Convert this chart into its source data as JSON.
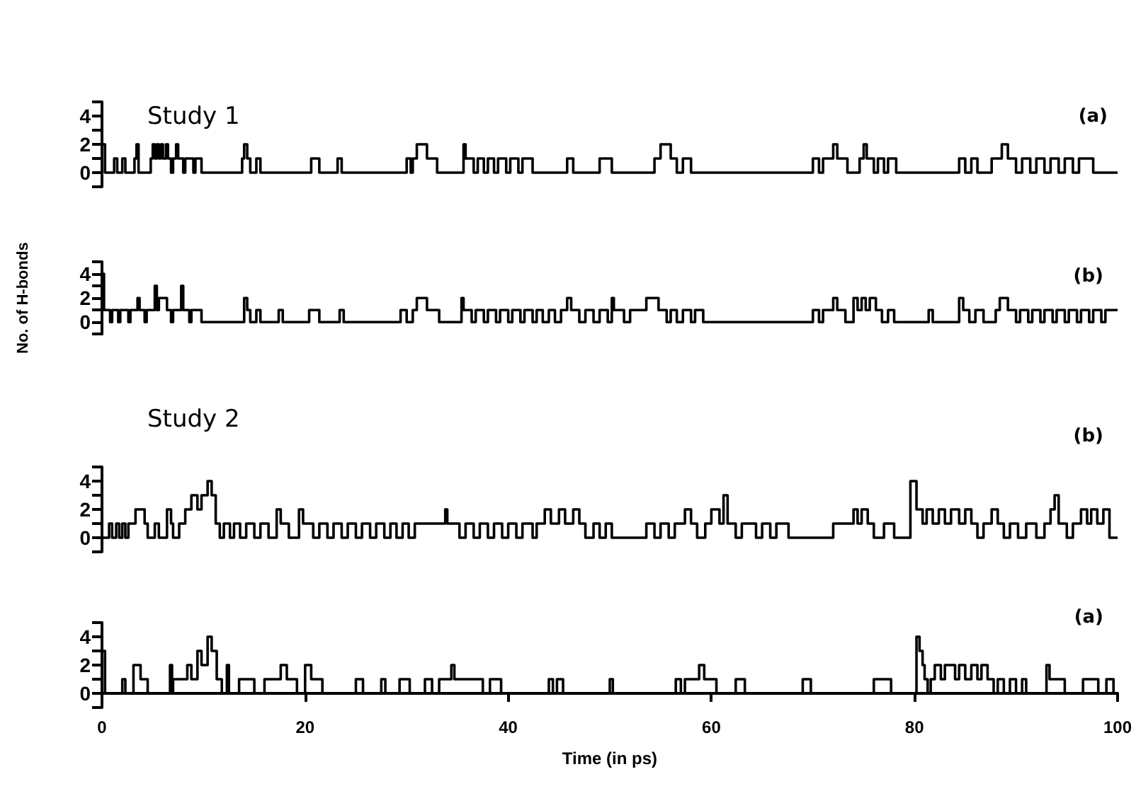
{
  "chart_data": [
    {
      "type": "step",
      "annotations": [
        "Study 1",
        "(a)"
      ],
      "xlim": [
        0,
        100
      ],
      "ylim": [
        -1,
        5
      ],
      "yticks": [
        {
          "value": -1,
          "label": null
        },
        0,
        {
          "value": 1,
          "label": null
        },
        2,
        {
          "value": 3,
          "label": null
        },
        4,
        {
          "value": 5,
          "label": null
        }
      ],
      "tick_labels": "y",
      "series": [
        {
          "color": "#000000",
          "x": [
            0,
            0.3,
            1.2,
            1.5,
            2.0,
            2.3,
            3.2,
            3.4,
            3.6,
            4.8,
            5.0,
            5.2,
            5.4,
            5.6,
            5.8,
            6.0,
            6.3,
            6.5,
            6.8,
            7.0,
            7.3,
            7.5,
            8.0,
            8.2,
            9.0,
            9.2,
            9.8,
            13.8,
            14.0,
            14.3,
            14.6,
            15.2,
            15.6,
            20.6,
            21.4,
            23.2,
            23.6,
            30.0,
            30.4,
            30.6,
            31.0,
            32.0,
            33.0,
            35.6,
            35.8,
            36.6,
            37.0,
            37.6,
            38.0,
            38.6,
            39.0,
            39.8,
            40.2,
            41.0,
            41.4,
            42.4,
            45.8,
            46.4,
            49.0,
            50.2,
            54.4,
            55.0,
            56.0,
            56.6,
            57.2,
            58.0,
            70.0,
            70.6,
            71.0,
            72.0,
            72.4,
            73.4,
            74.6,
            75.0,
            75.3,
            76.0,
            76.4,
            77.0,
            77.4,
            78.2,
            84.4,
            85.0,
            85.6,
            86.2,
            87.6,
            88.6,
            89.2,
            90.0,
            90.6,
            91.4,
            92.0,
            92.8,
            93.4,
            94.2,
            94.8,
            95.6,
            96.2,
            97.6,
            100
          ],
          "values": [
            2,
            0,
            1,
            0,
            1,
            0,
            1,
            2,
            0,
            1,
            2,
            1,
            2,
            1,
            2,
            1,
            2,
            1,
            0,
            1,
            2,
            1,
            0,
            1,
            0,
            1,
            0,
            1,
            2,
            1,
            0,
            1,
            0,
            1,
            0,
            1,
            0,
            1,
            0,
            1,
            2,
            1,
            0,
            2,
            1,
            0,
            1,
            0,
            1,
            0,
            1,
            0,
            1,
            0,
            1,
            0,
            1,
            0,
            1,
            0,
            1,
            2,
            1,
            0,
            1,
            0,
            1,
            0,
            1,
            2,
            1,
            0,
            1,
            2,
            1,
            0,
            1,
            0,
            1,
            0,
            1,
            0,
            1,
            0,
            1,
            2,
            1,
            0,
            1,
            0,
            1,
            0,
            1,
            0,
            1,
            0,
            1,
            0,
            0
          ]
        }
      ]
    },
    {
      "type": "step",
      "annotations": [
        "(b)"
      ],
      "ylabel": "No. of H-bonds",
      "xlim": [
        0,
        100
      ],
      "ylim": [
        -1,
        5
      ],
      "yticks": [
        {
          "value": -1,
          "label": null
        },
        0,
        {
          "value": 1,
          "label": null
        },
        2,
        {
          "value": 3,
          "label": null
        },
        4,
        {
          "value": 5,
          "label": null
        }
      ],
      "tick_labels": "y",
      "series": [
        {
          "color": "#000000",
          "x": [
            0,
            0.2,
            0.8,
            1.0,
            1.6,
            1.8,
            2.6,
            2.8,
            3.5,
            3.7,
            4.2,
            4.4,
            5.2,
            5.4,
            5.6,
            6.4,
            6.8,
            7.0,
            7.8,
            8.0,
            8.6,
            8.8,
            9.8,
            14.0,
            14.3,
            14.6,
            15.2,
            15.6,
            17.4,
            17.8,
            20.4,
            21.4,
            23.4,
            23.8,
            29.4,
            30.0,
            30.6,
            31.0,
            32.0,
            33.2,
            35.4,
            35.6,
            36.4,
            36.8,
            37.6,
            38.0,
            38.8,
            39.2,
            40.0,
            40.4,
            41.2,
            41.6,
            42.4,
            42.8,
            43.4,
            44.0,
            44.6,
            45.2,
            45.8,
            46.2,
            47.0,
            47.6,
            48.4,
            49.0,
            49.8,
            50.2,
            50.4,
            51.4,
            52.0,
            53.6,
            54.8,
            55.6,
            56.0,
            56.6,
            57.2,
            58.0,
            58.4,
            59.2,
            70.0,
            70.6,
            71.0,
            72.0,
            72.4,
            73.2,
            74.0,
            74.4,
            74.8,
            75.2,
            75.6,
            76.2,
            76.8,
            77.4,
            78.0,
            81.4,
            81.8,
            84.4,
            84.8,
            85.4,
            86.0,
            86.8,
            88.0,
            88.4,
            89.2,
            90.0,
            90.4,
            91.2,
            91.6,
            92.4,
            92.8,
            93.6,
            94.0,
            94.8,
            95.2,
            96.0,
            96.4,
            97.2,
            97.6,
            98.4,
            98.8,
            100
          ],
          "values": [
            4,
            1,
            0,
            1,
            0,
            1,
            0,
            1,
            2,
            1,
            0,
            1,
            3,
            1,
            2,
            1,
            0,
            1,
            3,
            1,
            0,
            1,
            0,
            2,
            1,
            0,
            1,
            0,
            1,
            0,
            1,
            0,
            1,
            0,
            1,
            0,
            1,
            2,
            1,
            0,
            2,
            1,
            0,
            1,
            0,
            1,
            0,
            1,
            0,
            1,
            0,
            1,
            0,
            1,
            0,
            1,
            0,
            1,
            2,
            1,
            0,
            1,
            0,
            1,
            0,
            2,
            1,
            0,
            1,
            2,
            1,
            0,
            1,
            0,
            1,
            0,
            1,
            0,
            1,
            0,
            1,
            2,
            1,
            0,
            2,
            1,
            2,
            1,
            2,
            1,
            0,
            1,
            0,
            1,
            0,
            2,
            1,
            0,
            1,
            0,
            1,
            2,
            1,
            0,
            1,
            0,
            1,
            0,
            1,
            0,
            1,
            0,
            1,
            0,
            1,
            0,
            1,
            0,
            1,
            1
          ]
        }
      ]
    },
    {
      "type": "step",
      "annotations": [
        "Study 2",
        "(b)"
      ],
      "xlim": [
        0,
        100
      ],
      "ylim": [
        -1,
        5
      ],
      "yticks": [
        {
          "value": -1,
          "label": null
        },
        0,
        {
          "value": 1,
          "label": null
        },
        2,
        {
          "value": 3,
          "label": null
        },
        4,
        {
          "value": 5,
          "label": null
        }
      ],
      "tick_labels": "y",
      "series": [
        {
          "color": "#000000",
          "x": [
            0,
            0.7,
            1.0,
            1.4,
            1.7,
            2.0,
            2.3,
            2.6,
            3.3,
            4.2,
            4.5,
            5.2,
            5.6,
            6.4,
            6.8,
            7.0,
            7.6,
            8.2,
            8.8,
            9.4,
            9.8,
            10.4,
            10.8,
            11.2,
            11.6,
            12.0,
            12.6,
            13.0,
            13.6,
            14.2,
            15.0,
            15.6,
            16.4,
            17.2,
            17.6,
            18.4,
            19.4,
            19.8,
            20.8,
            21.4,
            22.2,
            22.8,
            23.6,
            24.2,
            25.0,
            25.6,
            26.4,
            27.0,
            27.8,
            28.4,
            29.0,
            29.6,
            30.2,
            30.8,
            33.8,
            34.0,
            35.2,
            35.8,
            36.6,
            37.2,
            38.0,
            38.6,
            39.4,
            40.0,
            40.8,
            41.4,
            42.4,
            42.8,
            43.6,
            44.2,
            45.0,
            45.6,
            46.4,
            47.0,
            47.6,
            48.4,
            49.0,
            49.6,
            50.2,
            53.6,
            54.4,
            55.0,
            55.8,
            56.4,
            57.4,
            58.0,
            58.6,
            59.4,
            60.0,
            60.8,
            61.2,
            61.6,
            62.4,
            63.0,
            64.4,
            65.0,
            65.8,
            66.4,
            67.6,
            72.0,
            74.0,
            74.4,
            74.8,
            75.4,
            76.0,
            77.0,
            78.0,
            79.6,
            80.2,
            80.8,
            81.2,
            81.8,
            82.4,
            83.0,
            83.6,
            84.4,
            85.0,
            85.6,
            86.2,
            86.8,
            87.6,
            88.2,
            88.8,
            89.4,
            90.2,
            91.0,
            92.0,
            92.8,
            93.4,
            93.8,
            94.2,
            95.0,
            95.6,
            96.4,
            97.0,
            97.4,
            98.0,
            98.6,
            99.2,
            100
          ],
          "values": [
            0,
            1,
            0,
            1,
            0,
            1,
            0,
            1,
            2,
            1,
            0,
            1,
            0,
            2,
            1,
            0,
            1,
            2,
            3,
            2,
            3,
            4,
            3,
            1,
            0,
            1,
            0,
            1,
            0,
            1,
            0,
            1,
            0,
            2,
            1,
            0,
            2,
            1,
            0,
            1,
            0,
            1,
            0,
            1,
            0,
            1,
            0,
            1,
            0,
            1,
            0,
            1,
            0,
            1,
            2,
            1,
            0,
            1,
            0,
            1,
            0,
            1,
            0,
            1,
            0,
            1,
            0,
            1,
            2,
            1,
            2,
            1,
            2,
            1,
            0,
            1,
            0,
            1,
            0,
            1,
            0,
            1,
            0,
            1,
            2,
            1,
            0,
            1,
            2,
            1,
            3,
            1,
            0,
            1,
            0,
            1,
            0,
            1,
            0,
            1,
            2,
            1,
            2,
            1,
            0,
            1,
            0,
            4,
            2,
            1,
            2,
            1,
            2,
            1,
            2,
            1,
            2,
            1,
            0,
            1,
            2,
            1,
            0,
            1,
            0,
            1,
            0,
            1,
            2,
            3,
            1,
            0,
            1,
            2,
            1,
            2,
            1,
            2,
            0,
            0
          ]
        }
      ]
    },
    {
      "type": "step",
      "annotations": [
        "(a)"
      ],
      "xlabel": "Time (in ps)",
      "xlim": [
        0,
        100
      ],
      "xticks": [
        0,
        20,
        40,
        60,
        80,
        100
      ],
      "ylim": [
        -1,
        5
      ],
      "yticks": [
        {
          "value": -1,
          "label": null
        },
        0,
        {
          "value": 1,
          "label": null
        },
        2,
        {
          "value": 3,
          "label": null
        },
        4,
        {
          "value": 5,
          "label": null
        }
      ],
      "series": [
        {
          "color": "#000000",
          "x": [
            0,
            0.3,
            2.0,
            2.3,
            3.1,
            3.8,
            4.5,
            6.7,
            6.9,
            7.0,
            8.4,
            8.8,
            9.4,
            9.8,
            10.4,
            10.8,
            11.3,
            11.8,
            12.3,
            12.5,
            13.5,
            15.0,
            16.0,
            17.6,
            18.2,
            19.2,
            20.0,
            20.6,
            21.7,
            25.0,
            25.7,
            27.5,
            27.9,
            29.3,
            30.3,
            31.8,
            32.5,
            33.2,
            34.4,
            34.7,
            37.5,
            38.2,
            39.3,
            44.0,
            44.4,
            44.8,
            45.4,
            50.0,
            50.3,
            56.5,
            57.0,
            57.4,
            58.8,
            59.3,
            60.5,
            62.4,
            63.3,
            69.0,
            69.8,
            76.0,
            77.7,
            80.2,
            80.5,
            80.8,
            81.0,
            81.3,
            81.6,
            82.0,
            82.6,
            83.0,
            84.0,
            84.4,
            85.0,
            85.6,
            86.2,
            86.6,
            87.2,
            87.8,
            88.2,
            88.8,
            89.4,
            90.0,
            90.6,
            91.0,
            93.0,
            93.3,
            94.8,
            96.6,
            98.1,
            98.9,
            99.6,
            100
          ],
          "values": [
            3,
            0,
            1,
            0,
            2,
            1,
            0,
            2,
            0,
            1,
            2,
            1,
            3,
            2,
            4,
            3,
            1,
            0,
            2,
            0,
            1,
            0,
            1,
            2,
            1,
            0,
            2,
            1,
            0,
            1,
            0,
            1,
            0,
            1,
            0,
            1,
            0,
            1,
            2,
            1,
            0,
            1,
            0,
            1,
            0,
            1,
            0,
            1,
            0,
            1,
            0,
            1,
            2,
            1,
            0,
            1,
            0,
            1,
            0,
            1,
            0,
            4,
            3,
            2,
            1,
            0,
            1,
            2,
            1,
            2,
            1,
            2,
            1,
            2,
            1,
            2,
            1,
            0,
            1,
            0,
            1,
            0,
            1,
            0,
            2,
            1,
            0,
            1,
            0,
            1,
            0,
            0
          ]
        }
      ]
    }
  ]
}
